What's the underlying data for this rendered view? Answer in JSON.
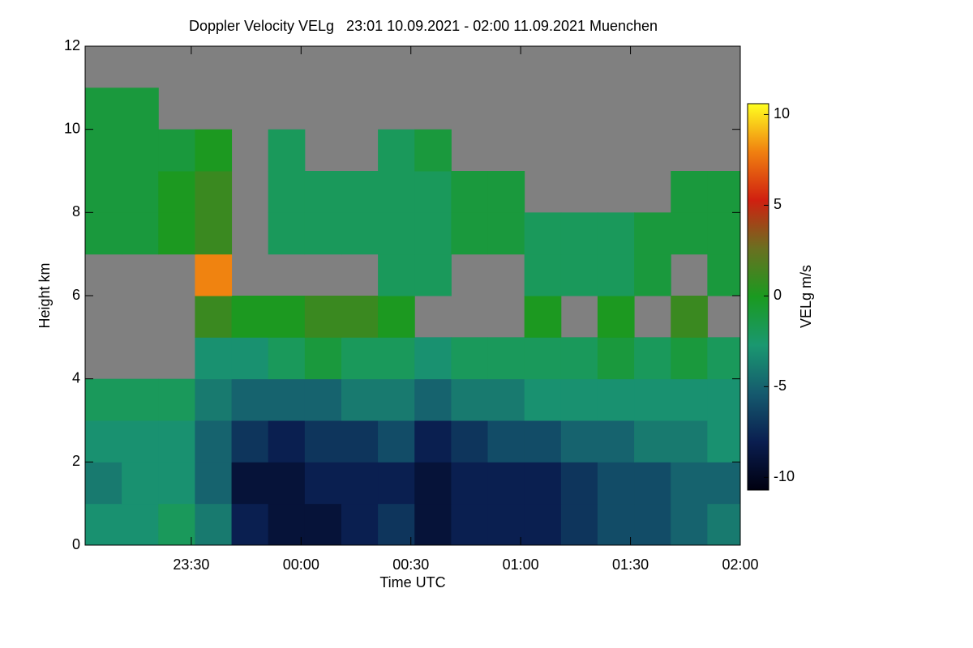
{
  "chart_data": {
    "type": "heatmap",
    "title": "Doppler Velocity VELg   23:01 10.09.2021 - 02:00 11.09.2021 Muenchen",
    "xlabel": "Time UTC",
    "ylabel": "Height km",
    "colorbar_label": "VELg m/s",
    "xlim": [
      23.0167,
      26.0
    ],
    "xticks": [
      {
        "value": 23.5,
        "label": "23:30"
      },
      {
        "value": 24.0,
        "label": "00:00"
      },
      {
        "value": 24.5,
        "label": "00:30"
      },
      {
        "value": 25.0,
        "label": "01:00"
      },
      {
        "value": 25.5,
        "label": "01:30"
      },
      {
        "value": 26.0,
        "label": "02:00"
      }
    ],
    "ylim": [
      0,
      12
    ],
    "yticks": [
      0,
      2,
      4,
      6,
      8,
      10,
      12
    ],
    "clim": [
      -10.7,
      10.6
    ],
    "cticks": [
      -10,
      -5,
      0,
      5,
      10
    ],
    "colormap": [
      "#000010",
      "#0a1e50",
      "#155a6e",
      "#1a9870",
      "#1a9a20",
      "#6a7020",
      "#d02010",
      "#f08010",
      "#ffff20"
    ],
    "nodata_color": "#808080",
    "x": [
      23.1,
      23.2667,
      23.4333,
      23.6,
      23.7667,
      23.9333,
      24.1,
      24.2667,
      24.4333,
      24.6,
      24.7667,
      24.9333,
      25.1,
      25.2667,
      25.4333,
      25.6,
      25.7667,
      25.9333
    ],
    "y": [
      0.5,
      1.5,
      2.5,
      3.5,
      4.5,
      5.5,
      6.5,
      7.5,
      8.5,
      9.5,
      10.5,
      11.5
    ],
    "values": [
      [
        -3,
        -3,
        -2,
        -4,
        -8,
        -9,
        -9,
        -8,
        -7,
        -9,
        -8,
        -8,
        -8,
        -7,
        -6,
        -6,
        -5,
        -4
      ],
      [
        -4,
        -3,
        -3,
        -5,
        -9,
        -9,
        -8,
        -8,
        -8,
        -9,
        -8,
        -8,
        -8,
        -7,
        -6,
        -6,
        -5,
        -5
      ],
      [
        -3,
        -3,
        -3,
        -5,
        -7,
        -8,
        -7,
        -7,
        -6,
        -8,
        -7,
        -6,
        -6,
        -5,
        -5,
        -4,
        -4,
        -3
      ],
      [
        -2,
        -2,
        -2,
        -4,
        -5,
        -5,
        -5,
        -4,
        -4,
        -5,
        -4,
        -4,
        -3,
        -3,
        -3,
        -3,
        -3,
        -3
      ],
      [
        null,
        null,
        null,
        -3,
        -3,
        -2,
        -1,
        -2,
        -2,
        -3,
        -2,
        -2,
        -2,
        -2,
        -1,
        -2,
        -1,
        -2
      ],
      [
        null,
        null,
        null,
        1,
        0,
        0,
        1,
        1,
        0,
        null,
        null,
        null,
        0,
        null,
        0,
        null,
        1,
        null
      ],
      [
        null,
        null,
        null,
        8,
        null,
        null,
        null,
        null,
        -2,
        -2,
        null,
        null,
        -2,
        -2,
        -2,
        -1,
        null,
        -1
      ],
      [
        -1,
        -1,
        0,
        1,
        null,
        -2,
        -2,
        -2,
        -2,
        -2,
        -1,
        -1,
        -2,
        -2,
        -2,
        -1,
        -1,
        -1
      ],
      [
        -1,
        -1,
        0,
        1,
        null,
        -2,
        -2,
        -2,
        -2,
        -2,
        -1,
        -1,
        null,
        null,
        null,
        null,
        -1,
        -1
      ],
      [
        -1,
        -1,
        -1,
        0,
        null,
        -2,
        null,
        null,
        -2,
        -1,
        null,
        null,
        null,
        null,
        null,
        null,
        null,
        null
      ],
      [
        -1,
        -1,
        null,
        null,
        null,
        null,
        null,
        null,
        null,
        null,
        null,
        null,
        null,
        null,
        null,
        null,
        null,
        null
      ],
      [
        null,
        null,
        null,
        null,
        null,
        null,
        null,
        null,
        null,
        null,
        null,
        null,
        null,
        null,
        null,
        null,
        null,
        null
      ]
    ]
  }
}
